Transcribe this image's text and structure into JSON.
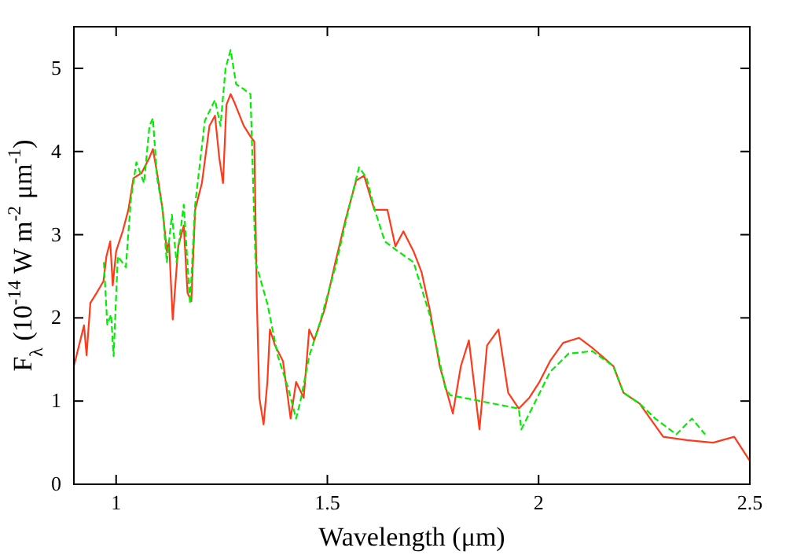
{
  "chart_data": {
    "type": "line",
    "xlabel": "Wavelength (μm)",
    "ylabel": "F$_{λ}$ (10$^{-14}$ W m$^{-2}$ μm$^{-1}$)",
    "xlim": [
      0.9,
      2.5
    ],
    "xticks": [
      1,
      1.5,
      2,
      2.5
    ],
    "ylim": [
      0,
      5.5
    ],
    "yticks": [
      0,
      1,
      2,
      3,
      4,
      5
    ],
    "grid": false,
    "marker": "none",
    "series": [
      {
        "color": "#ff3a1a",
        "line_style": "solid",
        "x": [
          0.9,
          0.924,
          0.93,
          0.939,
          0.955,
          0.97,
          0.977,
          0.986,
          0.992,
          1.0,
          1.016,
          1.029,
          1.041,
          1.06,
          1.079,
          1.087,
          1.097,
          1.11,
          1.12,
          1.125,
          1.134,
          1.147,
          1.16,
          1.169,
          1.178,
          1.187,
          1.203,
          1.221,
          1.234,
          1.244,
          1.253,
          1.261,
          1.271,
          1.28,
          1.302,
          1.318,
          1.327,
          1.333,
          1.339,
          1.349,
          1.358,
          1.364,
          1.376,
          1.395,
          1.413,
          1.426,
          1.444,
          1.457,
          1.469,
          1.494,
          1.519,
          1.543,
          1.568,
          1.587,
          1.611,
          1.642,
          1.661,
          1.68,
          1.704,
          1.723,
          1.742,
          1.766,
          1.797,
          1.816,
          1.835,
          1.86,
          1.878,
          1.905,
          1.928,
          1.953,
          1.978,
          2.002,
          2.027,
          2.058,
          2.096,
          2.127,
          2.177,
          2.201,
          2.239,
          2.295,
          2.351,
          2.413,
          2.463,
          2.5
        ],
        "values": [
          1.42,
          1.91,
          1.55,
          2.18,
          2.31,
          2.44,
          2.74,
          2.92,
          2.39,
          2.8,
          3.05,
          3.3,
          3.68,
          3.74,
          3.93,
          4.03,
          3.74,
          3.3,
          2.8,
          2.92,
          1.98,
          2.86,
          3.11,
          2.3,
          2.2,
          3.3,
          3.62,
          4.31,
          4.43,
          3.93,
          3.62,
          4.56,
          4.69,
          4.59,
          4.31,
          4.18,
          4.12,
          2.23,
          1.04,
          0.72,
          1.23,
          1.86,
          1.67,
          1.48,
          0.79,
          1.23,
          1.04,
          1.86,
          1.73,
          2.11,
          2.67,
          3.18,
          3.65,
          3.71,
          3.3,
          3.3,
          2.86,
          3.04,
          2.8,
          2.55,
          2.11,
          1.42,
          0.85,
          1.42,
          1.73,
          0.66,
          1.67,
          1.86,
          1.1,
          0.91,
          1.04,
          1.23,
          1.48,
          1.7,
          1.76,
          1.64,
          1.42,
          1.1,
          0.97,
          0.57,
          0.53,
          0.5,
          0.57,
          0.28
        ]
      },
      {
        "color": "#00ee00",
        "line_style": "dashed",
        "x": [
          0.971,
          0.979,
          0.988,
          0.994,
          1.004,
          1.023,
          1.035,
          1.048,
          1.066,
          1.079,
          1.087,
          1.097,
          1.11,
          1.12,
          1.132,
          1.143,
          1.16,
          1.175,
          1.187,
          1.21,
          1.234,
          1.247,
          1.259,
          1.271,
          1.284,
          1.302,
          1.318,
          1.33,
          1.358,
          1.383,
          1.407,
          1.426,
          1.438,
          1.457,
          1.481,
          1.519,
          1.55,
          1.575,
          1.593,
          1.612,
          1.636,
          1.667,
          1.704,
          1.742,
          1.779,
          1.791,
          1.953,
          1.959,
          1.99,
          2.027,
          2.071,
          2.127,
          2.177,
          2.201,
          2.239,
          2.276,
          2.326,
          2.363,
          2.394
        ],
        "values": [
          2.67,
          1.92,
          2.04,
          1.54,
          2.74,
          2.61,
          3.43,
          3.87,
          3.62,
          4.31,
          4.4,
          3.68,
          3.3,
          2.67,
          3.24,
          2.67,
          3.36,
          2.17,
          3.36,
          4.37,
          4.62,
          4.31,
          5.0,
          5.22,
          4.81,
          4.75,
          4.69,
          2.67,
          2.17,
          1.54,
          1.16,
          0.79,
          1.04,
          1.54,
          1.92,
          2.61,
          3.3,
          3.81,
          3.68,
          3.3,
          2.92,
          2.8,
          2.67,
          2.04,
          1.16,
          1.07,
          0.91,
          0.66,
          0.97,
          1.35,
          1.57,
          1.6,
          1.42,
          1.1,
          0.97,
          0.79,
          0.6,
          0.79,
          0.6
        ]
      }
    ]
  }
}
